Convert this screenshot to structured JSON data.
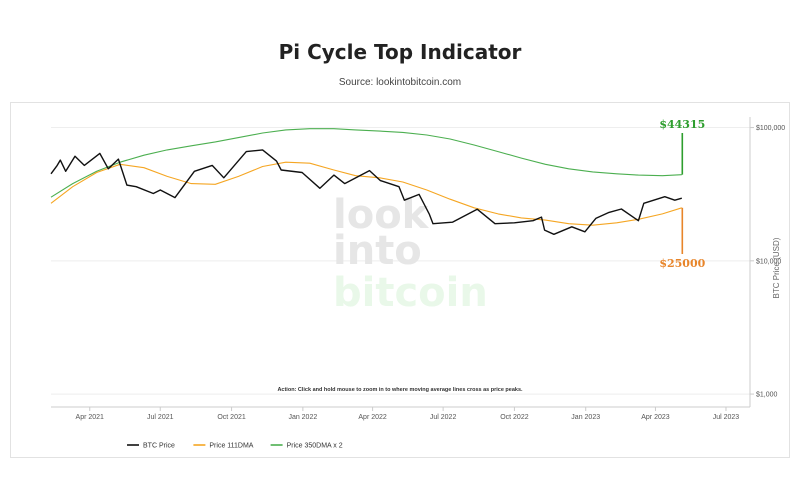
{
  "header": {
    "title": "Pi Cycle Top Indicator",
    "source": "Source: lookintobitcoin.com"
  },
  "watermark": {
    "line1": "look",
    "line2": "into",
    "line3": "bitcoin"
  },
  "colors": {
    "btc": "#111111",
    "dma111": "#f5a623",
    "dma350x2": "#4caf50",
    "label_green": "#2e9e2e",
    "label_orange": "#e8852a",
    "grid": "#eeeeee"
  },
  "chart_data": {
    "type": "line",
    "title": "Pi Cycle Top Indicator",
    "ylabel": "BTC Price (USD)",
    "yscale": "log",
    "ylim": [
      800,
      120000
    ],
    "y_ticks": [
      {
        "value": 100000,
        "label": "$100,000"
      },
      {
        "value": 10000,
        "label": "$10,000"
      },
      {
        "value": 1000,
        "label": "$1,000"
      }
    ],
    "xlim": [
      "2021-02-10",
      "2023-08-01"
    ],
    "x_ticks": [
      {
        "date": "2021-04-01",
        "label": "Apr 2021"
      },
      {
        "date": "2021-07-01",
        "label": "Jul 2021"
      },
      {
        "date": "2021-10-01",
        "label": "Oct 2021"
      },
      {
        "date": "2022-01-01",
        "label": "Jan 2022"
      },
      {
        "date": "2022-04-01",
        "label": "Apr 2022"
      },
      {
        "date": "2022-07-01",
        "label": "Jul 2022"
      },
      {
        "date": "2022-10-01",
        "label": "Oct 2022"
      },
      {
        "date": "2023-01-01",
        "label": "Jan 2023"
      },
      {
        "date": "2023-04-01",
        "label": "Apr 2023"
      },
      {
        "date": "2023-07-01",
        "label": "Jul 2023"
      }
    ],
    "grid": true,
    "legend_position": "bottom-left",
    "series": [
      {
        "name": "BTC Price",
        "points": [
          [
            "2021-02-10",
            45000
          ],
          [
            "2021-02-18",
            52000
          ],
          [
            "2021-02-22",
            57000
          ],
          [
            "2021-03-01",
            47000
          ],
          [
            "2021-03-13",
            61000
          ],
          [
            "2021-03-25",
            52000
          ],
          [
            "2021-04-14",
            64000
          ],
          [
            "2021-04-25",
            49000
          ],
          [
            "2021-05-08",
            58000
          ],
          [
            "2021-05-19",
            37000
          ],
          [
            "2021-05-31",
            36000
          ],
          [
            "2021-06-22",
            32000
          ],
          [
            "2021-07-01",
            34000
          ],
          [
            "2021-07-20",
            29800
          ],
          [
            "2021-08-14",
            47000
          ],
          [
            "2021-09-06",
            52000
          ],
          [
            "2021-09-21",
            42000
          ],
          [
            "2021-10-20",
            66000
          ],
          [
            "2021-11-10",
            68000
          ],
          [
            "2021-11-28",
            56000
          ],
          [
            "2021-12-04",
            48000
          ],
          [
            "2021-12-31",
            46000
          ],
          [
            "2022-01-23",
            35000
          ],
          [
            "2022-02-10",
            44000
          ],
          [
            "2022-02-24",
            38000
          ],
          [
            "2022-03-28",
            47500
          ],
          [
            "2022-04-11",
            40000
          ],
          [
            "2022-05-05",
            36000
          ],
          [
            "2022-05-12",
            28500
          ],
          [
            "2022-05-31",
            31500
          ],
          [
            "2022-06-13",
            22500
          ],
          [
            "2022-06-18",
            19000
          ],
          [
            "2022-07-13",
            19500
          ],
          [
            "2022-08-14",
            24400
          ],
          [
            "2022-09-06",
            19000
          ],
          [
            "2022-10-01",
            19300
          ],
          [
            "2022-10-25",
            20000
          ],
          [
            "2022-11-05",
            21300
          ],
          [
            "2022-11-09",
            17000
          ],
          [
            "2022-11-21",
            15800
          ],
          [
            "2022-12-14",
            18000
          ],
          [
            "2022-12-31",
            16500
          ],
          [
            "2023-01-14",
            20800
          ],
          [
            "2023-01-31",
            23100
          ],
          [
            "2023-02-16",
            24500
          ],
          [
            "2023-03-10",
            20000
          ],
          [
            "2023-03-17",
            27000
          ],
          [
            "2023-04-13",
            30300
          ],
          [
            "2023-04-26",
            28500
          ],
          [
            "2023-05-05",
            29500
          ]
        ]
      },
      {
        "name": "Price 111DMA",
        "points": [
          [
            "2021-02-10",
            27000
          ],
          [
            "2021-03-10",
            36000
          ],
          [
            "2021-04-10",
            46000
          ],
          [
            "2021-05-10",
            53000
          ],
          [
            "2021-06-10",
            50000
          ],
          [
            "2021-07-10",
            43000
          ],
          [
            "2021-08-10",
            38000
          ],
          [
            "2021-09-10",
            37500
          ],
          [
            "2021-10-10",
            43000
          ],
          [
            "2021-11-10",
            51000
          ],
          [
            "2021-12-10",
            55000
          ],
          [
            "2022-01-10",
            54000
          ],
          [
            "2022-02-10",
            48000
          ],
          [
            "2022-03-10",
            43500
          ],
          [
            "2022-04-10",
            42000
          ],
          [
            "2022-05-10",
            39000
          ],
          [
            "2022-06-10",
            34000
          ],
          [
            "2022-07-10",
            29000
          ],
          [
            "2022-08-10",
            25000
          ],
          [
            "2022-09-10",
            22500
          ],
          [
            "2022-10-10",
            21000
          ],
          [
            "2022-11-10",
            20200
          ],
          [
            "2022-12-10",
            19000
          ],
          [
            "2023-01-10",
            18500
          ],
          [
            "2023-02-10",
            19300
          ],
          [
            "2023-03-10",
            20500
          ],
          [
            "2023-04-10",
            22500
          ],
          [
            "2023-05-05",
            25000
          ]
        ]
      },
      {
        "name": "Price 350DMA x 2",
        "points": [
          [
            "2021-02-10",
            30000
          ],
          [
            "2021-03-10",
            38000
          ],
          [
            "2021-04-10",
            47000
          ],
          [
            "2021-05-10",
            55000
          ],
          [
            "2021-06-10",
            62000
          ],
          [
            "2021-07-10",
            68000
          ],
          [
            "2021-08-10",
            73000
          ],
          [
            "2021-09-10",
            78000
          ],
          [
            "2021-10-10",
            84000
          ],
          [
            "2021-11-10",
            91000
          ],
          [
            "2021-12-10",
            96000
          ],
          [
            "2022-01-10",
            98000
          ],
          [
            "2022-02-10",
            98000
          ],
          [
            "2022-03-10",
            96000
          ],
          [
            "2022-04-10",
            94000
          ],
          [
            "2022-05-10",
            92000
          ],
          [
            "2022-06-10",
            88000
          ],
          [
            "2022-07-10",
            82000
          ],
          [
            "2022-08-10",
            74000
          ],
          [
            "2022-09-10",
            66000
          ],
          [
            "2022-10-10",
            59000
          ],
          [
            "2022-11-10",
            53000
          ],
          [
            "2022-12-10",
            49000
          ],
          [
            "2023-01-10",
            46500
          ],
          [
            "2023-02-10",
            45000
          ],
          [
            "2023-03-10",
            44000
          ],
          [
            "2023-04-10",
            43500
          ],
          [
            "2023-05-05",
            44315
          ]
        ]
      }
    ],
    "annotations": [
      {
        "label": "$44315",
        "date": "2023-05-05",
        "value": 44315,
        "color": "green"
      },
      {
        "label": "$25000",
        "date": "2023-05-05",
        "value": 25000,
        "color": "orange"
      },
      {
        "label": "Action: Click and hold mouse to zoom in to where moving average lines cross as price peaks."
      }
    ]
  }
}
